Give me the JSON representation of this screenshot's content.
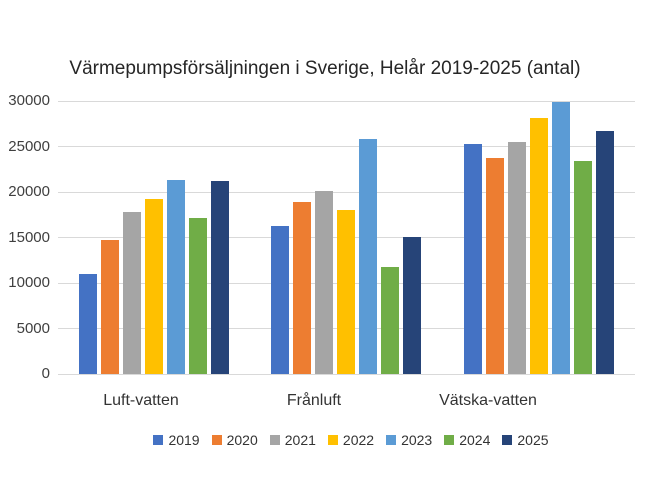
{
  "chart_data": {
    "type": "bar",
    "title": "Värmepumpsförsäljningen i Sverige, Helår 2019-2025 (antal)",
    "categories": [
      "Luft-vatten",
      "Frånluft",
      "Vätska-vatten"
    ],
    "series": [
      {
        "name": "2019",
        "color": "#4472C4",
        "values": [
          11000,
          16300,
          25300
        ]
      },
      {
        "name": "2020",
        "color": "#ED7D31",
        "values": [
          14700,
          18900,
          23700
        ]
      },
      {
        "name": "2021",
        "color": "#A5A5A5",
        "values": [
          17800,
          20100,
          25500
        ]
      },
      {
        "name": "2022",
        "color": "#FFC000",
        "values": [
          19200,
          18000,
          28100
        ]
      },
      {
        "name": "2023",
        "color": "#5B9BD5",
        "values": [
          21300,
          25800,
          29900
        ]
      },
      {
        "name": "2024",
        "color": "#70AD47",
        "values": [
          17100,
          11800,
          23400
        ]
      },
      {
        "name": "2025",
        "color": "#264478",
        "values": [
          21200,
          15100,
          26700
        ]
      }
    ],
    "xlabel": "",
    "ylabel": "",
    "ylim": [
      0,
      30000
    ],
    "yticks": [
      0,
      5000,
      10000,
      15000,
      20000,
      25000,
      30000
    ],
    "grid": true,
    "gridline_color": "#D9D9D9",
    "background_color": "#FFFFFF",
    "legend_position": "bottom"
  }
}
